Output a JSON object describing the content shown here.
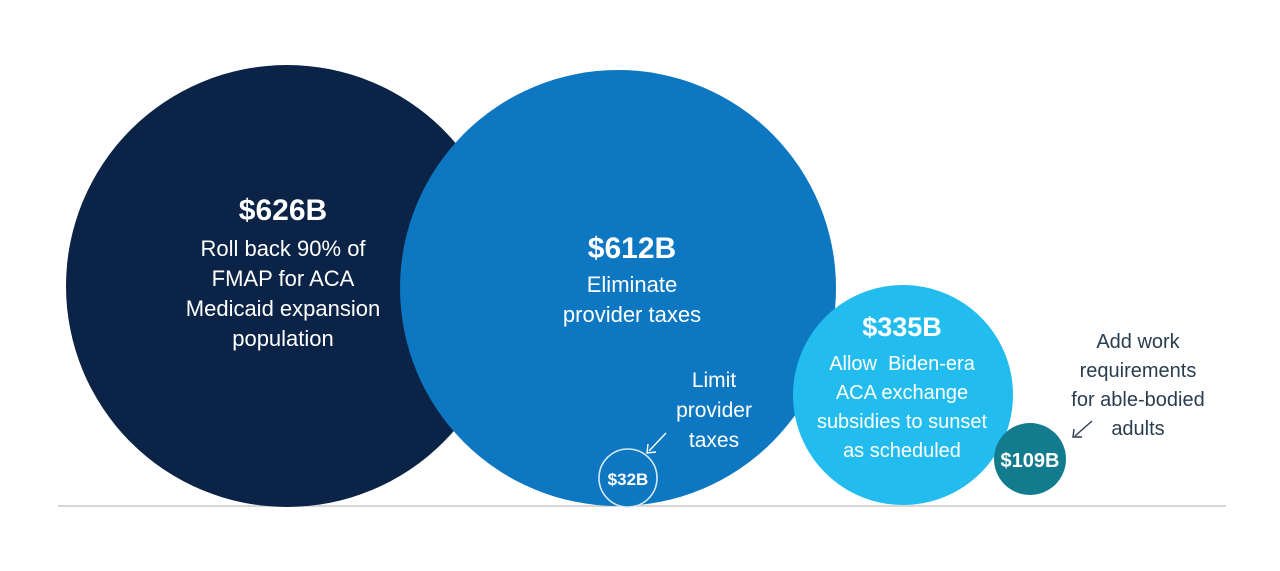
{
  "chart_data": {
    "type": "bubble",
    "unit": "$B",
    "bubbles": [
      {
        "id": "fmap",
        "value": 626,
        "value_label": "$626B",
        "label_lines": [
          "Roll back 90% of",
          "FMAP for ACA",
          "Medicaid expansion",
          "population"
        ],
        "color": "#0a2346",
        "text_color": "#ffffff"
      },
      {
        "id": "provider",
        "value": 612,
        "value_label": "$612B",
        "label_lines": [
          "Eliminate",
          "provider taxes"
        ],
        "color": "#0d77c2",
        "text_color": "#ffffff"
      },
      {
        "id": "exchange",
        "value": 335,
        "value_label": "$335B",
        "label_lines": [
          "Allow  Biden-era",
          "ACA exchange",
          "subsidies to sunset",
          "as scheduled"
        ],
        "color": "#22bdee",
        "text_color": "#ffffff"
      },
      {
        "id": "work",
        "value": 109,
        "value_label": "$109B",
        "callout_lines": [
          "Add work",
          "requirements",
          "for able-bodied",
          "adults"
        ],
        "color": "#127c8e",
        "text_color": "#ffffff",
        "callout_color": "#2a3d4f"
      },
      {
        "id": "limit",
        "value": 32,
        "value_label": "$32B",
        "callout_lines": [
          "Limit",
          "provider",
          "taxes"
        ],
        "color": "#0d77c2",
        "outline_color": "#d6e9f7",
        "text_color": "#ffffff",
        "callout_color": "#ffffff"
      }
    ],
    "baseline_color": "#c8c8c8"
  }
}
